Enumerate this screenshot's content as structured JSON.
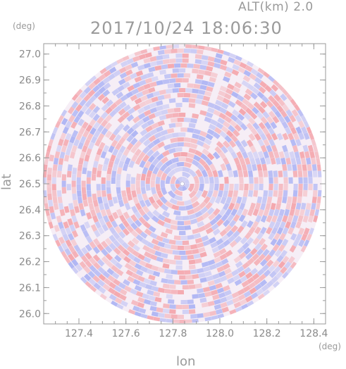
{
  "header": {
    "alt_label": "ALT(km)  2.0",
    "timestamp": "2017/10/24 18:06:30"
  },
  "chart_data": {
    "type": "heatmap",
    "title": "2017/10/24 18:06:30",
    "subtitle": "ALT(km)  2.0",
    "xlabel": "lon",
    "ylabel": "lat",
    "x_unit": "(deg)",
    "y_unit": "(deg)",
    "xlim": [
      127.25,
      128.45
    ],
    "ylim": [
      25.96,
      27.04
    ],
    "x_ticks": [
      "127.4",
      "127.6",
      "127.8",
      "128.0",
      "128.2",
      "128.4"
    ],
    "x_tick_values": [
      127.4,
      127.6,
      127.8,
      128.0,
      128.2,
      128.4
    ],
    "y_ticks": [
      "26.0",
      "26.1",
      "26.2",
      "26.3",
      "26.4",
      "26.5",
      "26.6",
      "26.7",
      "26.8",
      "26.9",
      "27.0"
    ],
    "y_tick_values": [
      26.0,
      26.1,
      26.2,
      26.3,
      26.4,
      26.5,
      26.6,
      26.7,
      26.8,
      26.9,
      27.0
    ],
    "radar_center": [
      127.84,
      26.5
    ],
    "colors": {
      "positive": "#f4a0a6",
      "negative": "#a8b0f4",
      "neutral": "#f6eef6",
      "axis": "#9a9a9a"
    },
    "grid": false
  }
}
